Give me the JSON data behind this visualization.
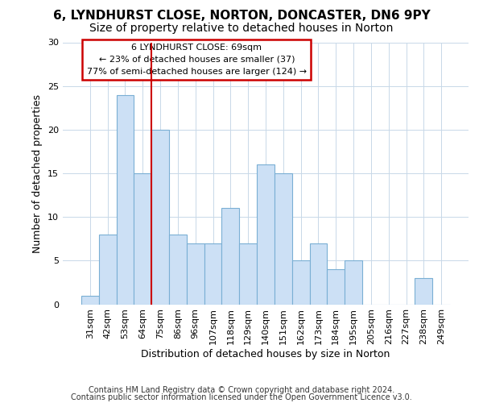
{
  "title1": "6, LYNDHURST CLOSE, NORTON, DONCASTER, DN6 9PY",
  "title2": "Size of property relative to detached houses in Norton",
  "xlabel": "Distribution of detached houses by size in Norton",
  "ylabel": "Number of detached properties",
  "categories": [
    "31sqm",
    "42sqm",
    "53sqm",
    "64sqm",
    "75sqm",
    "86sqm",
    "96sqm",
    "107sqm",
    "118sqm",
    "129sqm",
    "140sqm",
    "151sqm",
    "162sqm",
    "173sqm",
    "184sqm",
    "195sqm",
    "205sqm",
    "216sqm",
    "227sqm",
    "238sqm",
    "249sqm"
  ],
  "values": [
    1,
    8,
    24,
    15,
    20,
    8,
    7,
    7,
    11,
    7,
    16,
    15,
    5,
    7,
    4,
    5,
    0,
    0,
    0,
    3,
    0
  ],
  "bar_color": "#cce0f5",
  "bar_edge_color": "#7aafd4",
  "grid_color": "#c8d8e8",
  "annotation_line1": "6 LYNDHURST CLOSE: 69sqm",
  "annotation_line2": "← 23% of detached houses are smaller (37)",
  "annotation_line3": "77% of semi-detached houses are larger (124) →",
  "annotation_box_color": "#ffffff",
  "annotation_box_edge_color": "#cc0000",
  "red_line_x": 3.5,
  "ylim": [
    0,
    30
  ],
  "yticks": [
    0,
    5,
    10,
    15,
    20,
    25,
    30
  ],
  "footer1": "Contains HM Land Registry data © Crown copyright and database right 2024.",
  "footer2": "Contains public sector information licensed under the Open Government Licence v3.0.",
  "bg_color": "#ffffff",
  "title1_fontsize": 11,
  "title2_fontsize": 10,
  "xlabel_fontsize": 9,
  "ylabel_fontsize": 9,
  "tick_fontsize": 8,
  "footer_fontsize": 7,
  "annot_fontsize": 8
}
